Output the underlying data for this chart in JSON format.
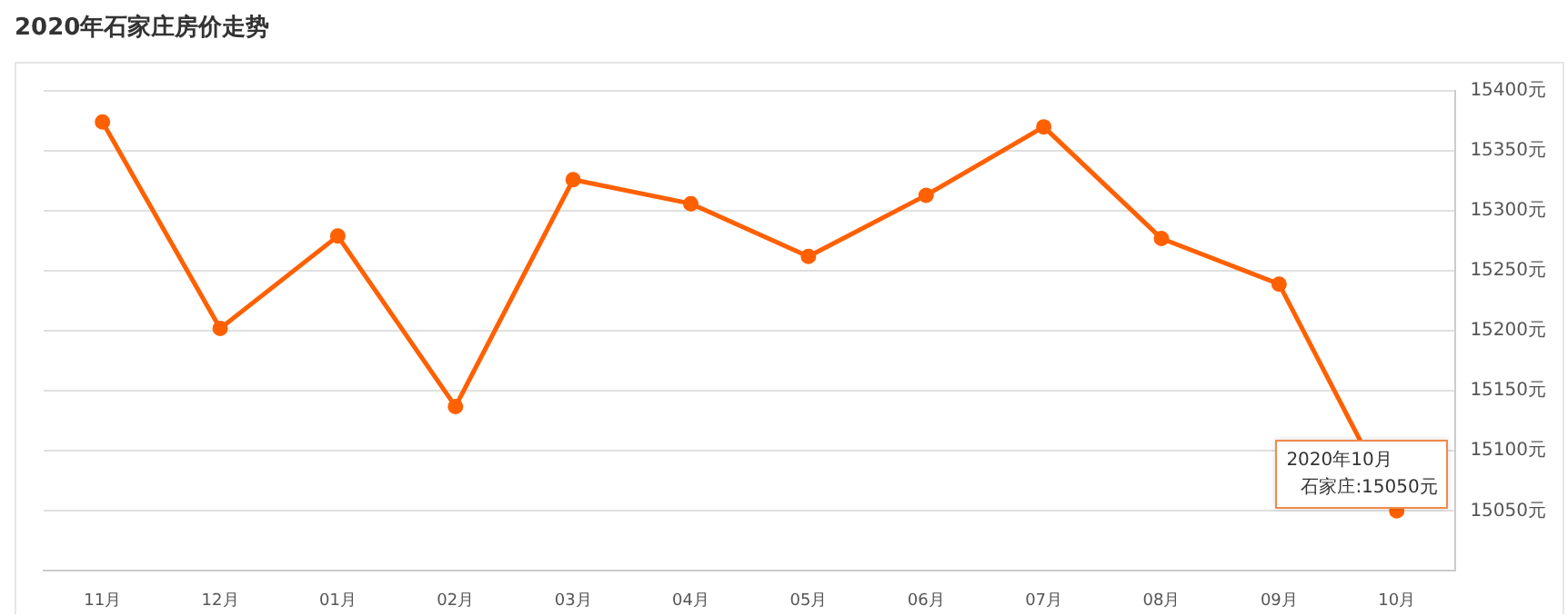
{
  "chart_data": {
    "type": "line",
    "title": "2020年石家庄房价走势",
    "categories": [
      "11月",
      "12月",
      "01月",
      "02月",
      "03月",
      "04月",
      "05月",
      "06月",
      "07月",
      "08月",
      "09月",
      "10月"
    ],
    "series": [
      {
        "color": "#ff6000",
        "values": [
          15374,
          15202,
          15279,
          15137,
          15326,
          15306,
          15262,
          15313,
          15370,
          15277,
          15239,
          15050
        ]
      }
    ],
    "ylim": [
      15000,
      15400
    ],
    "yticks": [
      {
        "value": 15050,
        "label": "15050元"
      },
      {
        "value": 15100,
        "label": "15100元"
      },
      {
        "value": 15150,
        "label": "15150元"
      },
      {
        "value": 15200,
        "label": "15200元"
      },
      {
        "value": 15250,
        "label": "15250元"
      },
      {
        "value": 15300,
        "label": "15300元"
      },
      {
        "value": 15350,
        "label": "15350元"
      },
      {
        "value": 15400,
        "label": "15400元"
      }
    ],
    "grid": "y",
    "legend": false,
    "marker": "circle",
    "line_style": "solid",
    "annotations": [
      "2020年10月",
      "石家庄:15050元"
    ]
  }
}
